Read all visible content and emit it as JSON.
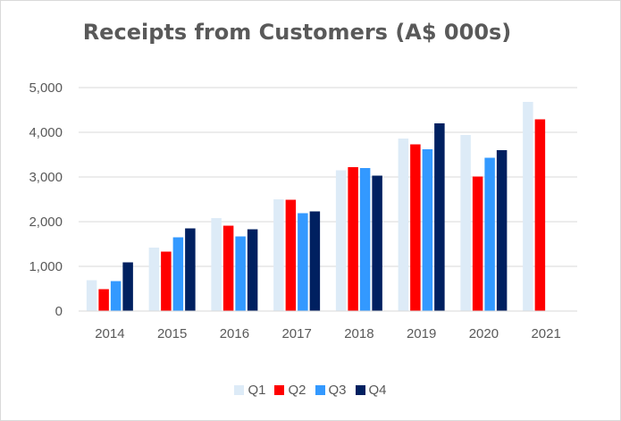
{
  "chart_data": {
    "type": "bar",
    "title": "Receipts from Customers (A$ 000s)",
    "xlabel": "",
    "ylabel": "",
    "categories": [
      "2014",
      "2015",
      "2016",
      "2017",
      "2018",
      "2019",
      "2020",
      "2021"
    ],
    "series": [
      {
        "name": "Q1",
        "color": "#ddebf7",
        "values": [
          690,
          1420,
          2080,
          2500,
          3150,
          3860,
          3940,
          4680
        ]
      },
      {
        "name": "Q2",
        "color": "#ff0000",
        "values": [
          490,
          1330,
          1910,
          2490,
          3220,
          3730,
          3010,
          4290
        ]
      },
      {
        "name": "Q3",
        "color": "#3399ff",
        "values": [
          670,
          1650,
          1670,
          2190,
          3200,
          3620,
          3430,
          null
        ]
      },
      {
        "name": "Q4",
        "color": "#002060",
        "values": [
          1090,
          1850,
          1830,
          2230,
          3030,
          4200,
          3600,
          null
        ]
      }
    ],
    "ylim": [
      0,
      5000
    ],
    "yticks": [
      0,
      1000,
      2000,
      3000,
      4000,
      5000
    ],
    "ytick_labels": [
      "0",
      "1,000",
      "2,000",
      "3,000",
      "4,000",
      "5,000"
    ],
    "grid": true,
    "legend_position": "bottom"
  }
}
